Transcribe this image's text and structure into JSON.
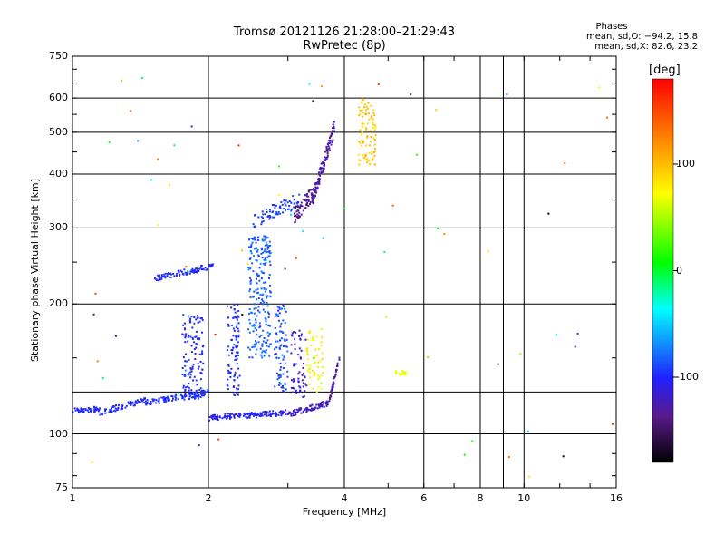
{
  "title": "Tromsø 20121126 21:28:00–21:29:43",
  "subtitle": "RwPretec (8p)",
  "stats": {
    "header": "Phases",
    "line_o": "mean, sd,O: −94.2, 15.8",
    "line_x": "mean, sd,X:  82.6, 23.2"
  },
  "colorbar": {
    "label": "[deg]",
    "ticks": [
      "100",
      "0",
      "-100"
    ],
    "tick_values": [
      100,
      0,
      -100
    ],
    "range": [
      -180,
      180
    ]
  },
  "chart_data": {
    "type": "scatter",
    "xlabel": "Frequency [MHz]",
    "ylabel": "Stationary phase Virtual Height [km]",
    "xscale": "log",
    "yscale": "log",
    "xlim": [
      1,
      16
    ],
    "ylim": [
      75,
      750
    ],
    "xticks": [
      1,
      2,
      4,
      6,
      8,
      10,
      16
    ],
    "xtick_labels": [
      "1",
      "2",
      "4",
      "6",
      "8",
      "10",
      "16"
    ],
    "yticks": [
      75,
      100,
      200,
      300,
      400,
      500,
      600,
      750
    ],
    "ytick_labels": [
      "75",
      "100",
      "200",
      "300",
      "400",
      "500",
      "600",
      "750"
    ],
    "x_gridlines": [
      2,
      4,
      6,
      8,
      10
    ],
    "x_minor_gridlines": [
      9
    ],
    "y_gridlines": [
      100,
      200,
      300,
      400,
      500,
      600
    ],
    "y_minor_gridlines": [
      125
    ],
    "grid": true,
    "point_groups": [
      {
        "name": "low-trace",
        "f": [
          1.0,
          1.15
        ],
        "h": [
          113,
          114
        ],
        "phase": [
          -110,
          -90
        ],
        "n": 50
      },
      {
        "name": "low-trace",
        "f": [
          1.15,
          1.45
        ],
        "h": [
          112,
          120
        ],
        "phase": [
          -110,
          -90
        ],
        "n": 70
      },
      {
        "name": "low-trace",
        "f": [
          1.45,
          2.0
        ],
        "h": [
          118,
          125
        ],
        "phase": [
          -110,
          -85
        ],
        "n": 110
      },
      {
        "name": "low-trace",
        "f": [
          2.0,
          3.0
        ],
        "h": [
          109,
          112
        ],
        "phase": [
          -115,
          -95
        ],
        "n": 120
      },
      {
        "name": "low-trace",
        "f": [
          3.0,
          3.7
        ],
        "h": [
          111,
          118
        ],
        "phase": [
          -130,
          -110
        ],
        "n": 90
      },
      {
        "name": "low-trace",
        "f": [
          3.7,
          3.9
        ],
        "h": [
          118,
          150
        ],
        "phase": [
          -140,
          -120
        ],
        "n": 40
      },
      {
        "name": "streaks",
        "f": [
          1.75,
          1.95
        ],
        "h": [
          120,
          190
        ],
        "phase": [
          -110,
          -85
        ],
        "n": 120
      },
      {
        "name": "streaks",
        "f": [
          2.2,
          2.35
        ],
        "h": [
          122,
          200
        ],
        "phase": [
          -110,
          -85
        ],
        "n": 90
      },
      {
        "name": "streaks",
        "f": [
          2.45,
          2.75
        ],
        "h": [
          150,
          290
        ],
        "phase": [
          -95,
          -70
        ],
        "n": 230
      },
      {
        "name": "streaks",
        "f": [
          2.8,
          3.0
        ],
        "h": [
          125,
          200
        ],
        "phase": [
          -100,
          -75
        ],
        "n": 80
      },
      {
        "name": "streaks",
        "f": [
          3.05,
          3.3
        ],
        "h": [
          120,
          175
        ],
        "phase": [
          -130,
          -105
        ],
        "n": 60
      },
      {
        "name": "streaks",
        "f": [
          3.3,
          3.6
        ],
        "h": [
          125,
          175
        ],
        "phase": [
          60,
          90
        ],
        "n": 55
      },
      {
        "name": "E-trace",
        "f": [
          1.5,
          2.05
        ],
        "h": [
          228,
          245
        ],
        "phase": [
          -110,
          -90
        ],
        "n": 90
      },
      {
        "name": "F-trace",
        "f": [
          2.5,
          3.2
        ],
        "h": [
          310,
          350
        ],
        "phase": [
          -100,
          -85
        ],
        "n": 70
      },
      {
        "name": "F-trace",
        "f": [
          3.1,
          3.4
        ],
        "h": [
          320,
          360
        ],
        "phase": [
          -150,
          -125
        ],
        "n": 60
      },
      {
        "name": "F-trace",
        "f": [
          3.4,
          3.8
        ],
        "h": [
          350,
          510
        ],
        "phase": [
          -140,
          -115
        ],
        "n": 110
      },
      {
        "name": "O-cusp",
        "f": [
          4.3,
          4.7
        ],
        "h": [
          420,
          600
        ],
        "phase": [
          80,
          110
        ],
        "n": 90
      },
      {
        "name": "mid-cluster",
        "f": [
          5.2,
          5.5
        ],
        "h": [
          137,
          140
        ],
        "phase": [
          60,
          75
        ],
        "n": 25
      }
    ]
  }
}
